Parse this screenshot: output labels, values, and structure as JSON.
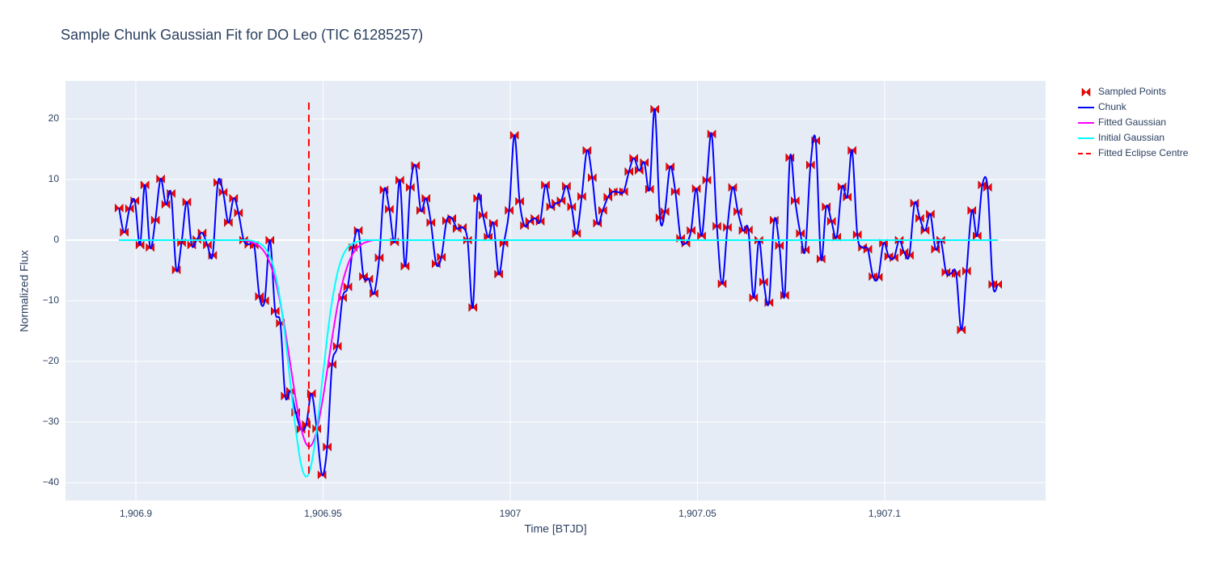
{
  "chart_data": {
    "type": "line",
    "title": "Sample Chunk Gaussian Fit for DO Leo (TIC 61285257)",
    "x_label": "Time [BTJD]",
    "y_label": "Normalized Flux",
    "xlim": [
      1906.8812,
      1907.143
    ],
    "ylim": [
      -42.93,
      26.27
    ],
    "xticks": [
      {
        "value": 1906.9,
        "label": "1,906.9"
      },
      {
        "value": 1906.95,
        "label": "1,906.95"
      },
      1907,
      {
        "value": 1907.05,
        "label": "1,907.05"
      },
      {
        "value": 1907.1,
        "label": "1,907.1"
      }
    ],
    "yticks": [
      {
        "value": -40,
        "label": "−40"
      },
      {
        "value": -30,
        "label": "−30"
      },
      {
        "value": -20,
        "label": "−20"
      },
      {
        "value": -10,
        "label": "−10"
      },
      0,
      10,
      20
    ],
    "grid": true,
    "zeroline": true,
    "legend": "outside-top-right",
    "x": [
      1906.8955,
      1906.8969,
      1906.8983,
      1906.8997,
      1906.9011,
      1906.9024,
      1906.9038,
      1906.9052,
      1906.9066,
      1906.908,
      1906.9094,
      1906.9108,
      1906.9122,
      1906.9136,
      1906.9149,
      1906.9163,
      1906.9177,
      1906.9191,
      1906.9205,
      1906.9219,
      1906.9233,
      1906.9247,
      1906.9261,
      1906.9274,
      1906.9288,
      1906.9302,
      1906.9316,
      1906.933,
      1906.9344,
      1906.9358,
      1906.9372,
      1906.9386,
      1906.9399,
      1906.9413,
      1906.9427,
      1906.9441,
      1906.9455,
      1906.9469,
      1906.9483,
      1906.9497,
      1906.9511,
      1906.9524,
      1906.9538,
      1906.9552,
      1906.9566,
      1906.958,
      1906.9594,
      1906.9608,
      1906.9622,
      1906.9636,
      1906.965,
      1906.9663,
      1906.9677,
      1906.9691,
      1906.9705,
      1906.9719,
      1906.9733,
      1906.9747,
      1906.9761,
      1906.9775,
      1906.9788,
      1906.9802,
      1906.9816,
      1906.983,
      1906.9844,
      1906.9858,
      1906.9872,
      1906.9886,
      1906.99,
      1906.9913,
      1906.9927,
      1906.9941,
      1906.9955,
      1906.9969,
      1906.9983,
      1906.9997,
      1907.0011,
      1907.0025,
      1907.0038,
      1907.0052,
      1907.0066,
      1907.008,
      1907.0094,
      1907.0108,
      1907.0122,
      1907.0136,
      1907.015,
      1907.0164,
      1907.0177,
      1907.0191,
      1907.0205,
      1907.0219,
      1907.0233,
      1907.0247,
      1907.0261,
      1907.0275,
      1907.0289,
      1907.0303,
      1907.0317,
      1907.033,
      1907.0344,
      1907.0358,
      1907.0372,
      1907.0386,
      1907.04,
      1907.0413,
      1907.0427,
      1907.0441,
      1907.0455,
      1907.0469,
      1907.0483,
      1907.0497,
      1907.0511,
      1907.0525,
      1907.0538,
      1907.0552,
      1907.0566,
      1907.058,
      1907.0594,
      1907.0608,
      1907.0622,
      1907.0636,
      1907.065,
      1907.0664,
      1907.0677,
      1907.0691,
      1907.0705,
      1907.0719,
      1907.0733,
      1907.0747,
      1907.0761,
      1907.0775,
      1907.0788,
      1907.0802,
      1907.0816,
      1907.083,
      1907.0844,
      1907.0858,
      1907.0872,
      1907.0886,
      1907.09,
      1907.0913,
      1907.0927,
      1907.0941,
      1907.0955,
      1907.0969,
      1907.0983,
      1907.0997,
      1907.1011,
      1907.1025,
      1907.1039,
      1907.1052,
      1907.1066,
      1907.108,
      1907.1094,
      1907.1108,
      1907.1122,
      1907.1136,
      1907.115,
      1907.1164,
      1907.1177,
      1907.1191,
      1907.1205,
      1907.1219,
      1907.1233,
      1907.1247,
      1907.1261,
      1907.1275,
      1907.1289,
      1907.1302
    ],
    "series": [
      {
        "name": "Sampled Points",
        "mode": "markers",
        "color": "#ff0000",
        "values": [
          5.3,
          1.3,
          5.2,
          6.5,
          -0.8,
          9.1,
          -1.2,
          3.3,
          10.1,
          5.9,
          7.7,
          -4.9,
          -0.4,
          6.3,
          -0.8,
          0.1,
          1.2,
          -0.8,
          -2.5,
          9.5,
          7.9,
          2.9,
          6.9,
          4.5,
          0,
          -0.7,
          -0.8,
          -9.3,
          -10,
          0,
          -11.7,
          -13.7,
          -25.7,
          -24.9,
          -28.4,
          -31.2,
          -30.4,
          -25.3,
          -31.1,
          -38.7,
          -34.1,
          -20.5,
          -17.5,
          -9.5,
          -7.7,
          -1.2,
          1.6,
          -6,
          -6.4,
          -8.8,
          -2.9,
          8.3,
          5.1,
          -0.3,
          9.9,
          -4.3,
          8.7,
          12.3,
          4.9,
          6.9,
          2.9,
          -3.9,
          -2.8,
          3.2,
          3.6,
          1.9,
          2.1,
          0,
          -11.1,
          6.9,
          4.1,
          0.5,
          2.8,
          -5.6,
          -0.5,
          4.9,
          17.3,
          6.4,
          2.4,
          3.1,
          3.6,
          3.1,
          9.1,
          5.5,
          6.1,
          6.5,
          8.9,
          5.5,
          1.1,
          7.2,
          14.8,
          10.3,
          2.8,
          4.9,
          7.1,
          8,
          7.9,
          8,
          11.3,
          13.5,
          11.5,
          12.8,
          8.4,
          21.6,
          3.7,
          4.7,
          12.1,
          8,
          0.3,
          -0.5,
          1.6,
          8.5,
          0.7,
          9.9,
          17.5,
          2.3,
          -7.2,
          2.1,
          8.7,
          4.7,
          1.6,
          1.7,
          -9.5,
          0,
          -6.9,
          -10.3,
          3.3,
          -0.9,
          -9.1,
          13.6,
          6.5,
          1.1,
          -1.6,
          12.4,
          16.4,
          -3.1,
          5.5,
          3.1,
          0.5,
          8.8,
          7.1,
          14.8,
          0.9,
          -1.2,
          -1.5,
          -6,
          -6.1,
          -0.5,
          -2.7,
          -2.9,
          0,
          -2,
          -2.5,
          6.1,
          3.6,
          1.6,
          4.3,
          -1.5,
          0,
          -5.3,
          -5.5,
          -5.5,
          -14.8,
          -5.1,
          4.9,
          0.7,
          9.1,
          8.7,
          -7.3,
          -7.3
        ]
      },
      {
        "name": "Chunk",
        "mode": "lines",
        "color": "#0000ff",
        "values": [
          5.3,
          1.3,
          5.2,
          6.5,
          -0.8,
          9.1,
          -1.2,
          3.3,
          10.1,
          5.9,
          7.7,
          -4.9,
          -0.4,
          6.3,
          -0.8,
          0.1,
          1.2,
          -0.8,
          -2.5,
          9.5,
          7.9,
          2.9,
          6.9,
          4.5,
          0,
          -0.7,
          -0.8,
          -9.3,
          -10,
          0,
          -11.7,
          -13.7,
          -25.7,
          -24.9,
          -28.4,
          -31.2,
          -30.4,
          -25.3,
          -31.1,
          -38.7,
          -34.1,
          -20.5,
          -17.5,
          -9.5,
          -7.7,
          -1.2,
          1.6,
          -6,
          -6.4,
          -8.8,
          -2.9,
          8.3,
          5.1,
          -0.3,
          9.9,
          -4.3,
          8.7,
          12.3,
          4.9,
          6.9,
          2.9,
          -3.9,
          -2.8,
          3.2,
          3.6,
          1.9,
          2.1,
          0,
          -11.1,
          6.9,
          4.1,
          0.5,
          2.8,
          -5.6,
          -0.5,
          4.9,
          17.3,
          6.4,
          2.4,
          3.1,
          3.6,
          3.1,
          9.1,
          5.5,
          6.1,
          6.5,
          8.9,
          5.5,
          1.1,
          7.2,
          14.8,
          10.3,
          2.8,
          4.9,
          7.1,
          8,
          7.9,
          8,
          11.3,
          13.5,
          11.5,
          12.8,
          8.4,
          21.6,
          3.7,
          4.7,
          12.1,
          8,
          0.3,
          -0.5,
          1.6,
          8.5,
          0.7,
          9.9,
          17.5,
          2.3,
          -7.2,
          2.1,
          8.7,
          4.7,
          1.6,
          1.7,
          -9.5,
          0,
          -6.9,
          -10.3,
          3.3,
          -0.9,
          -9.1,
          13.6,
          6.5,
          1.1,
          -1.6,
          12.4,
          16.4,
          -3.1,
          5.5,
          3.1,
          0.5,
          8.8,
          7.1,
          14.8,
          0.9,
          -1.2,
          -1.5,
          -6,
          -6.1,
          -0.5,
          -2.7,
          -2.9,
          0,
          -2,
          -2.5,
          6.1,
          3.6,
          1.6,
          4.3,
          -1.5,
          0,
          -5.3,
          -5.5,
          -5.5,
          -14.8,
          -5.1,
          4.9,
          0.7,
          9.1,
          8.7,
          -7.3,
          -7.3
        ]
      },
      {
        "name": "Fitted Gaussian",
        "mode": "lines",
        "color": "#ff00ff",
        "values": [
          0,
          0,
          0,
          0,
          0,
          0,
          0,
          0,
          0,
          0,
          0,
          0,
          0,
          0,
          0,
          0,
          0,
          0,
          0,
          0,
          0,
          0,
          0,
          0,
          0,
          -0.2,
          -0.5,
          -1,
          -2,
          -3.8,
          -6.5,
          -10.4,
          -15,
          -20.6,
          -26.2,
          -30.9,
          -33.6,
          -33.8,
          -31.4,
          -27,
          -21.5,
          -16.2,
          -11,
          -7,
          -4.1,
          -2.2,
          -1.1,
          -0.5,
          -0.2,
          0,
          0,
          0,
          0,
          0,
          0,
          0,
          0,
          0,
          0,
          0,
          0,
          0,
          0,
          0,
          0,
          0,
          0,
          0,
          0,
          0,
          0,
          0,
          0,
          0,
          0,
          0,
          0,
          0,
          0,
          0,
          0,
          0,
          0,
          0,
          0,
          0,
          0,
          0,
          0,
          0,
          0,
          0,
          0,
          0,
          0,
          0,
          0,
          0,
          0,
          0,
          0,
          0,
          0,
          0,
          0,
          0,
          0,
          0,
          0,
          0,
          0,
          0,
          0,
          0,
          0,
          0,
          0,
          0,
          0,
          0,
          0,
          0,
          0,
          0,
          0,
          0,
          0,
          0,
          0,
          0,
          0,
          0,
          0,
          0,
          0,
          0,
          0,
          0,
          0,
          0,
          0,
          0,
          0,
          0,
          0,
          0,
          0,
          0,
          0,
          0,
          0,
          0,
          0,
          0,
          0,
          0,
          0,
          0,
          0,
          0,
          0,
          0,
          0,
          0,
          0,
          0,
          0,
          0,
          0,
          0
        ]
      },
      {
        "name": "Initial Gaussian",
        "mode": "lines",
        "color": "#00ffff",
        "values": [
          0,
          0,
          0,
          0,
          0,
          0,
          0,
          0,
          0,
          0,
          0,
          0,
          0,
          0,
          0,
          0,
          0,
          0,
          0,
          0,
          0,
          0,
          0,
          0,
          0,
          0,
          -0.2,
          -0.5,
          -1.2,
          -2.7,
          -5.5,
          -10.1,
          -16,
          -23.7,
          -31.2,
          -36.9,
          -39,
          -36.9,
          -31.2,
          -23.7,
          -16,
          -10.1,
          -5.5,
          -2.7,
          -1.2,
          -0.5,
          -0.2,
          0,
          0,
          0,
          0,
          0,
          0,
          0,
          0,
          0,
          0,
          0,
          0,
          0,
          0,
          0,
          0,
          0,
          0,
          0,
          0,
          0,
          0,
          0,
          0,
          0,
          0,
          0,
          0,
          0,
          0,
          0,
          0,
          0,
          0,
          0,
          0,
          0,
          0,
          0,
          0,
          0,
          0,
          0,
          0,
          0,
          0,
          0,
          0,
          0,
          0,
          0,
          0,
          0,
          0,
          0,
          0,
          0,
          0,
          0,
          0,
          0,
          0,
          0,
          0,
          0,
          0,
          0,
          0,
          0,
          0,
          0,
          0,
          0,
          0,
          0,
          0,
          0,
          0,
          0,
          0,
          0,
          0,
          0,
          0,
          0,
          0,
          0,
          0,
          0,
          0,
          0,
          0,
          0,
          0,
          0,
          0,
          0,
          0,
          0,
          0,
          0,
          0,
          0,
          0,
          0,
          0,
          0,
          0,
          0,
          0,
          0,
          0,
          0,
          0,
          0,
          0,
          0,
          0,
          0,
          0,
          0,
          0,
          0
        ]
      },
      {
        "name": "Fitted Eclipse Centre",
        "mode": "lines",
        "dash": true,
        "color": "#ff0000",
        "x": [
          1906.9462,
          1906.9462
        ],
        "values": [
          22.7,
          -38.9
        ]
      }
    ]
  }
}
